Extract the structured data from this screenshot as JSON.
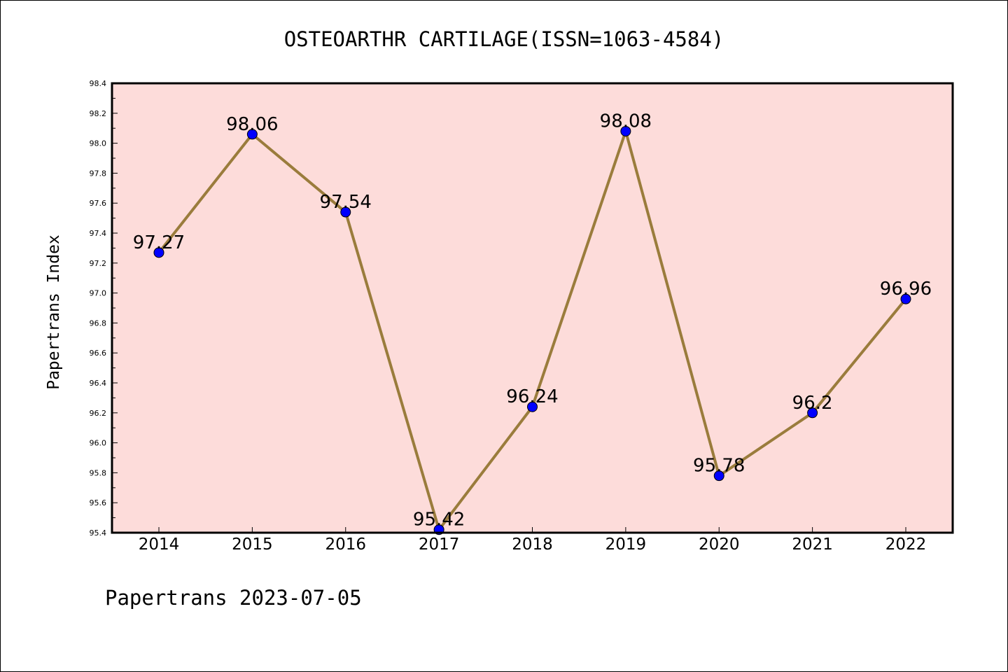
{
  "chart_data": {
    "type": "line",
    "title": "OSTEOARTHR CARTILAGE(ISSN=1063-4584)",
    "xlabel": "",
    "ylabel": "Papertrans Index",
    "categories": [
      "2014",
      "2015",
      "2016",
      "2017",
      "2018",
      "2019",
      "2020",
      "2021",
      "2022"
    ],
    "values": [
      97.27,
      98.06,
      97.54,
      95.42,
      96.24,
      98.08,
      95.78,
      96.2,
      96.96
    ],
    "data_labels": [
      "97.27",
      "98.06",
      "97.54",
      "95.42",
      "96.24",
      "98.08",
      "95.78",
      "96.2",
      "96.96"
    ],
    "ylim": [
      95.4,
      98.4
    ],
    "yticks": [
      "95.4",
      "95.6",
      "95.8",
      "96.0",
      "96.2",
      "96.4",
      "96.6",
      "96.8",
      "97.0",
      "97.2",
      "97.4",
      "97.6",
      "97.8",
      "98.0",
      "98.2",
      "98.4"
    ],
    "grid": false,
    "legend": "none",
    "colors": {
      "plot_background": "#fddcda",
      "line": "#9a7c3c",
      "marker": "#0000ff"
    }
  },
  "footer": "Papertrans 2023-07-05"
}
